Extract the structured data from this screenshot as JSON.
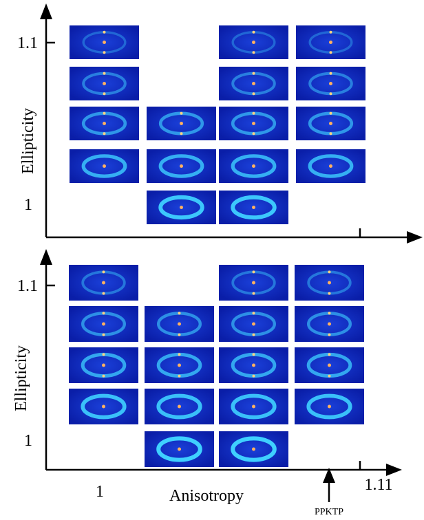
{
  "panels": [
    {
      "y_label": "Ellipticity",
      "y_ticks": [
        "1.1",
        "1"
      ]
    },
    {
      "y_label": "Ellipticity",
      "y_ticks": [
        "1.1",
        "1"
      ]
    }
  ],
  "x_axis": {
    "label": "Anisotropy",
    "ticks": [
      "1",
      "1.11"
    ]
  },
  "annotation": "PPKTP"
}
